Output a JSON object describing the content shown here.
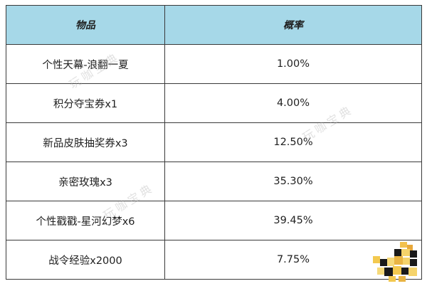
{
  "table": {
    "headers": {
      "item": "物品",
      "probability": "概率"
    },
    "rows": [
      {
        "item": "个性天幕-浪翻一夏",
        "probability": "1.00%"
      },
      {
        "item": "积分夺宝券x1",
        "probability": "4.00%"
      },
      {
        "item": "新品皮肤抽奖券x3",
        "probability": "12.50%"
      },
      {
        "item": "亲密玫瑰x3",
        "probability": "35.30%"
      },
      {
        "item": "个性戳戳-星河幻梦x6",
        "probability": "39.45%"
      },
      {
        "item": "战令经验x2000",
        "probability": "7.75%"
      }
    ]
  },
  "watermark": "玩咖宝典",
  "colors": {
    "header_bg": "#a6d8e8",
    "border": "#3a3a3a"
  }
}
